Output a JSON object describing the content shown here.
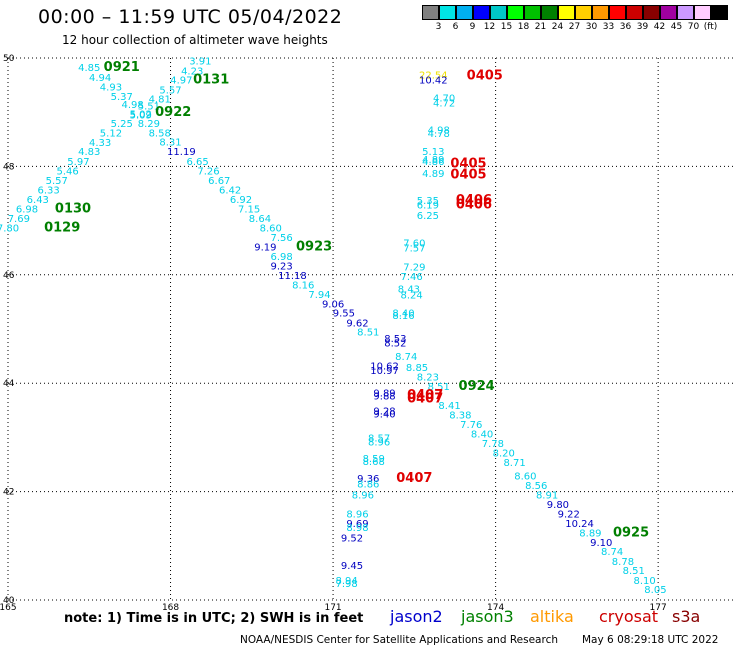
{
  "header": {
    "title": "00:00 – 11:59 UTC 05/04/2022",
    "subtitle": "12 hour collection of altimeter wave heights"
  },
  "legend": {
    "colors": [
      "#808080",
      "#00e5e5",
      "#00b0f0",
      "#0000ff",
      "#00c8c8",
      "#00ff00",
      "#00c000",
      "#008000",
      "#ffff00",
      "#ffd000",
      "#ff9900",
      "#ff0000",
      "#cc0000",
      "#880000",
      "#a000a0",
      "#cc99ff",
      "#ffccff",
      "#000000"
    ],
    "labels": [
      "3",
      "6",
      "9",
      "12",
      "15",
      "18",
      "21",
      "24",
      "27",
      "30",
      "33",
      "36",
      "39",
      "42",
      "45",
      "70",
      "(ft)"
    ]
  },
  "axes": {
    "x_ticks": [
      {
        "v": 165,
        "label": "165"
      },
      {
        "v": 168,
        "label": "168"
      },
      {
        "v": 171,
        "label": "171"
      },
      {
        "v": 174,
        "label": "174"
      },
      {
        "v": 177,
        "label": "177"
      }
    ],
    "y_ticks": [
      {
        "v": 40,
        "label": "40"
      },
      {
        "v": 42,
        "label": "42"
      },
      {
        "v": 44,
        "label": "44"
      },
      {
        "v": 46,
        "label": "46"
      },
      {
        "v": 48,
        "label": "48"
      },
      {
        "v": 50,
        "label": "50"
      }
    ]
  },
  "labels": [
    {
      "t": "3.91",
      "c": "#00d0e8",
      "lon": 168.55,
      "lat": 49.95
    },
    {
      "t": "4.85",
      "c": "#00d0e8",
      "lon": 166.5,
      "lat": 49.83
    },
    {
      "t": "0921",
      "c": "#007f00",
      "lon": 167.1,
      "lat": 49.83,
      "big": true
    },
    {
      "t": "4.23",
      "c": "#00d0e8",
      "lon": 168.4,
      "lat": 49.77
    },
    {
      "t": "4.94",
      "c": "#00d0e8",
      "lon": 166.7,
      "lat": 49.65
    },
    {
      "t": "4.97",
      "c": "#00d0e8",
      "lon": 168.2,
      "lat": 49.6
    },
    {
      "t": "0131",
      "c": "#007f00",
      "lon": 168.75,
      "lat": 49.6,
      "big": true
    },
    {
      "t": "4.93",
      "c": "#00d0e8",
      "lon": 166.9,
      "lat": 49.47
    },
    {
      "t": "5.57",
      "c": "#00d0e8",
      "lon": 168.0,
      "lat": 49.42
    },
    {
      "t": "5.37",
      "c": "#00d0e8",
      "lon": 167.1,
      "lat": 49.3
    },
    {
      "t": "4.81",
      "c": "#00d0e8",
      "lon": 167.8,
      "lat": 49.25
    },
    {
      "t": "4.98",
      "c": "#00d0e8",
      "lon": 167.3,
      "lat": 49.15
    },
    {
      "t": "5.51",
      "c": "#00d0e8",
      "lon": 167.6,
      "lat": 49.12
    },
    {
      "t": "5.02",
      "c": "#00d0e8",
      "lon": 167.45,
      "lat": 48.98
    },
    {
      "t": "5.09",
      "c": "#00d0e8",
      "lon": 167.45,
      "lat": 48.96
    },
    {
      "t": "0922",
      "c": "#007f00",
      "lon": 168.05,
      "lat": 49.0,
      "big": true
    },
    {
      "t": "5.25",
      "c": "#00d0e8",
      "lon": 167.1,
      "lat": 48.8
    },
    {
      "t": "8.29",
      "c": "#00d0e8",
      "lon": 167.6,
      "lat": 48.8
    },
    {
      "t": "5.12",
      "c": "#00d0e8",
      "lon": 166.9,
      "lat": 48.63
    },
    {
      "t": "8.58",
      "c": "#00d0e8",
      "lon": 167.8,
      "lat": 48.63
    },
    {
      "t": "4.33",
      "c": "#00d0e8",
      "lon": 166.7,
      "lat": 48.45
    },
    {
      "t": "8.31",
      "c": "#00d0e8",
      "lon": 168.0,
      "lat": 48.46
    },
    {
      "t": "4.83",
      "c": "#00d0e8",
      "lon": 166.5,
      "lat": 48.28
    },
    {
      "t": "11.19",
      "c": "#0000c0",
      "lon": 168.2,
      "lat": 48.28
    },
    {
      "t": "5.97",
      "c": "#00d0e8",
      "lon": 166.3,
      "lat": 48.1
    },
    {
      "t": "6.65",
      "c": "#00d0e8",
      "lon": 168.5,
      "lat": 48.1
    },
    {
      "t": "5.46",
      "c": "#00d0e8",
      "lon": 166.1,
      "lat": 47.92
    },
    {
      "t": "7.26",
      "c": "#00d0e8",
      "lon": 168.7,
      "lat": 47.92
    },
    {
      "t": "5.57",
      "c": "#00d0e8",
      "lon": 165.9,
      "lat": 47.75
    },
    {
      "t": "6.67",
      "c": "#00d0e8",
      "lon": 168.9,
      "lat": 47.75
    },
    {
      "t": "6.33",
      "c": "#00d0e8",
      "lon": 165.75,
      "lat": 47.57
    },
    {
      "t": "6.42",
      "c": "#00d0e8",
      "lon": 169.1,
      "lat": 47.57
    },
    {
      "t": "6.43",
      "c": "#00d0e8",
      "lon": 165.55,
      "lat": 47.4
    },
    {
      "t": "6.92",
      "c": "#00d0e8",
      "lon": 169.3,
      "lat": 47.4
    },
    {
      "t": "6.98",
      "c": "#00d0e8",
      "lon": 165.35,
      "lat": 47.22
    },
    {
      "t": "0130",
      "c": "#007f00",
      "lon": 166.2,
      "lat": 47.22,
      "big": true
    },
    {
      "t": "7.15",
      "c": "#00d0e8",
      "lon": 169.45,
      "lat": 47.22
    },
    {
      "t": "7.69",
      "c": "#00d0e8",
      "lon": 165.2,
      "lat": 47.05
    },
    {
      "t": "8.64",
      "c": "#00d0e8",
      "lon": 169.65,
      "lat": 47.05
    },
    {
      "t": "7.80",
      "c": "#00d0e8",
      "lon": 165.0,
      "lat": 46.87
    },
    {
      "t": "0129",
      "c": "#007f00",
      "lon": 166.0,
      "lat": 46.87,
      "big": true
    },
    {
      "t": "8.60",
      "c": "#00d0e8",
      "lon": 169.85,
      "lat": 46.87
    },
    {
      "t": "7.56",
      "c": "#00d0e8",
      "lon": 170.05,
      "lat": 46.7
    },
    {
      "t": "9.19",
      "c": "#0000c0",
      "lon": 169.75,
      "lat": 46.52
    },
    {
      "t": "0923",
      "c": "#007f00",
      "lon": 170.65,
      "lat": 46.52,
      "big": true
    },
    {
      "t": "6.98",
      "c": "#00d0e8",
      "lon": 170.05,
      "lat": 46.35
    },
    {
      "t": "9.23",
      "c": "#0000c0",
      "lon": 170.05,
      "lat": 46.17
    },
    {
      "t": "11.18",
      "c": "#0000c0",
      "lon": 170.25,
      "lat": 46.0
    },
    {
      "t": "8.16",
      "c": "#00d0e8",
      "lon": 170.45,
      "lat": 45.82
    },
    {
      "t": "7.94",
      "c": "#00d0e8",
      "lon": 170.75,
      "lat": 45.65
    },
    {
      "t": "9.06",
      "c": "#0000c0",
      "lon": 171.0,
      "lat": 45.47
    },
    {
      "t": "9.55",
      "c": "#0000c0",
      "lon": 171.2,
      "lat": 45.3
    },
    {
      "t": "9.62",
      "c": "#0000c0",
      "lon": 171.45,
      "lat": 45.12
    },
    {
      "t": "8.51",
      "c": "#00d0e8",
      "lon": 171.65,
      "lat": 44.95
    },
    {
      "t": "7.60",
      "c": "#00d0e8",
      "lon": 172.5,
      "lat": 46.6
    },
    {
      "t": "7.57",
      "c": "#00d0e8",
      "lon": 172.5,
      "lat": 46.5
    },
    {
      "t": "7.29",
      "c": "#00d0e8",
      "lon": 172.5,
      "lat": 46.15
    },
    {
      "t": "7.46",
      "c": "#00d0e8",
      "lon": 172.45,
      "lat": 45.98
    },
    {
      "t": "8.43",
      "c": "#00d0e8",
      "lon": 172.4,
      "lat": 45.75
    },
    {
      "t": "8.24",
      "c": "#00d0e8",
      "lon": 172.45,
      "lat": 45.64
    },
    {
      "t": "8.40",
      "c": "#00d0e8",
      "lon": 172.3,
      "lat": 45.3
    },
    {
      "t": "8.16",
      "c": "#00d0e8",
      "lon": 172.3,
      "lat": 45.26
    },
    {
      "t": "8.53",
      "c": "#0000c0",
      "lon": 172.15,
      "lat": 44.83
    },
    {
      "t": "8.52",
      "c": "#0000c0",
      "lon": 172.15,
      "lat": 44.75
    },
    {
      "t": "8.74",
      "c": "#00d0e8",
      "lon": 172.35,
      "lat": 44.5
    },
    {
      "t": "10.62",
      "c": "#0000c0",
      "lon": 171.95,
      "lat": 44.33
    },
    {
      "t": "10.97",
      "c": "#0000c0",
      "lon": 171.95,
      "lat": 44.24
    },
    {
      "t": "8.85",
      "c": "#00d0e8",
      "lon": 172.55,
      "lat": 44.3
    },
    {
      "t": "8.23",
      "c": "#00d0e8",
      "lon": 172.75,
      "lat": 44.12
    },
    {
      "t": "8.51",
      "c": "#00d0e8",
      "lon": 172.95,
      "lat": 43.95
    },
    {
      "t": "0924",
      "c": "#007f00",
      "lon": 173.65,
      "lat": 43.95,
      "big": true
    },
    {
      "t": "9.89",
      "c": "#0000c0",
      "lon": 171.95,
      "lat": 43.83
    },
    {
      "t": "9.88",
      "c": "#0000c0",
      "lon": 171.95,
      "lat": 43.77
    },
    {
      "t": "0407",
      "c": "#e00000",
      "lon": 172.7,
      "lat": 43.78,
      "big": true
    },
    {
      "t": "0407",
      "c": "#e00000",
      "lon": 172.7,
      "lat": 43.72,
      "big": true
    },
    {
      "t": "8.41",
      "c": "#00d0e8",
      "lon": 173.15,
      "lat": 43.6
    },
    {
      "t": "9.28",
      "c": "#0000c0",
      "lon": 171.95,
      "lat": 43.5
    },
    {
      "t": "9.40",
      "c": "#0000c0",
      "lon": 171.95,
      "lat": 43.44
    },
    {
      "t": "8.38",
      "c": "#00d0e8",
      "lon": 173.35,
      "lat": 43.42
    },
    {
      "t": "7.76",
      "c": "#00d0e8",
      "lon": 173.55,
      "lat": 43.25
    },
    {
      "t": "8.57",
      "c": "#00d0e8",
      "lon": 171.85,
      "lat": 43.0
    },
    {
      "t": "8.96",
      "c": "#00d0e8",
      "lon": 171.85,
      "lat": 42.92
    },
    {
      "t": "8.40",
      "c": "#00d0e8",
      "lon": 173.75,
      "lat": 43.07
    },
    {
      "t": "7.78",
      "c": "#00d0e8",
      "lon": 173.95,
      "lat": 42.9
    },
    {
      "t": "8.20",
      "c": "#00d0e8",
      "lon": 174.15,
      "lat": 42.72
    },
    {
      "t": "8.59",
      "c": "#00d0e8",
      "lon": 171.75,
      "lat": 42.62
    },
    {
      "t": "8.68",
      "c": "#00d0e8",
      "lon": 171.75,
      "lat": 42.56
    },
    {
      "t": "8.71",
      "c": "#00d0e8",
      "lon": 174.35,
      "lat": 42.55
    },
    {
      "t": "9.36",
      "c": "#0000c0",
      "lon": 171.65,
      "lat": 42.25
    },
    {
      "t": "8.86",
      "c": "#00d0e8",
      "lon": 171.65,
      "lat": 42.15
    },
    {
      "t": "0407",
      "c": "#e00000",
      "lon": 172.5,
      "lat": 42.25,
      "big": true
    },
    {
      "t": "8.60",
      "c": "#00d0e8",
      "lon": 174.55,
      "lat": 42.3
    },
    {
      "t": "8.56",
      "c": "#00d0e8",
      "lon": 174.75,
      "lat": 42.12
    },
    {
      "t": "8.96",
      "c": "#00d0e8",
      "lon": 171.55,
      "lat": 41.95
    },
    {
      "t": "8.91",
      "c": "#00d0e8",
      "lon": 174.95,
      "lat": 41.95
    },
    {
      "t": "9.80",
      "c": "#0000c0",
      "lon": 175.15,
      "lat": 41.77
    },
    {
      "t": "8.96",
      "c": "#00d0e8",
      "lon": 171.45,
      "lat": 41.6
    },
    {
      "t": "9.22",
      "c": "#0000c0",
      "lon": 175.35,
      "lat": 41.6
    },
    {
      "t": "9.69",
      "c": "#0000c0",
      "lon": 171.45,
      "lat": 41.42
    },
    {
      "t": "8.98",
      "c": "#00d0e8",
      "lon": 171.45,
      "lat": 41.35
    },
    {
      "t": "10.24",
      "c": "#0000c0",
      "lon": 175.55,
      "lat": 41.42
    },
    {
      "t": "8.89",
      "c": "#00d0e8",
      "lon": 175.75,
      "lat": 41.25
    },
    {
      "t": "0925",
      "c": "#007f00",
      "lon": 176.5,
      "lat": 41.25,
      "big": true
    },
    {
      "t": "9.52",
      "c": "#0000c0",
      "lon": 171.35,
      "lat": 41.15
    },
    {
      "t": "9.10",
      "c": "#0000c0",
      "lon": 175.95,
      "lat": 41.07
    },
    {
      "t": "8.74",
      "c": "#00d0e8",
      "lon": 176.15,
      "lat": 40.9
    },
    {
      "t": "9.45",
      "c": "#0000c0",
      "lon": 171.35,
      "lat": 40.65
    },
    {
      "t": "8.78",
      "c": "#00d0e8",
      "lon": 176.35,
      "lat": 40.72
    },
    {
      "t": "8.51",
      "c": "#00d0e8",
      "lon": 176.55,
      "lat": 40.55
    },
    {
      "t": "8.94",
      "c": "#00d0e8",
      "lon": 171.25,
      "lat": 40.37
    },
    {
      "t": "7.98",
      "c": "#00d0e8",
      "lon": 171.25,
      "lat": 40.31
    },
    {
      "t": "8.10",
      "c": "#00d0e8",
      "lon": 176.75,
      "lat": 40.37
    },
    {
      "t": "8.05",
      "c": "#00d0e8",
      "lon": 176.95,
      "lat": 40.2
    },
    {
      "t": "22.54",
      "c": "#f0e000",
      "lon": 172.85,
      "lat": 49.7
    },
    {
      "t": "10.42",
      "c": "#0000c0",
      "lon": 172.85,
      "lat": 49.6
    },
    {
      "t": "0405",
      "c": "#e00000",
      "lon": 173.8,
      "lat": 49.68,
      "big": true
    },
    {
      "t": "4.70",
      "c": "#00d0e8",
      "lon": 173.05,
      "lat": 49.27
    },
    {
      "t": "4.72",
      "c": "#00d0e8",
      "lon": 173.05,
      "lat": 49.18
    },
    {
      "t": "4.98",
      "c": "#00d0e8",
      "lon": 172.95,
      "lat": 48.68
    },
    {
      "t": "4.78",
      "c": "#00d0e8",
      "lon": 172.95,
      "lat": 48.62
    },
    {
      "t": "5.13",
      "c": "#00d0e8",
      "lon": 172.85,
      "lat": 48.28
    },
    {
      "t": "4.89",
      "c": "#00d0e8",
      "lon": 172.85,
      "lat": 48.14
    },
    {
      "t": "4.86",
      "c": "#00d0e8",
      "lon": 172.85,
      "lat": 48.1
    },
    {
      "t": "0405",
      "c": "#e00000",
      "lon": 173.5,
      "lat": 48.05,
      "big": true
    },
    {
      "t": "4.89",
      "c": "#00d0e8",
      "lon": 172.85,
      "lat": 47.88
    },
    {
      "t": "0405",
      "c": "#e00000",
      "lon": 173.5,
      "lat": 47.85,
      "big": true
    },
    {
      "t": "5.35",
      "c": "#00d0e8",
      "lon": 172.75,
      "lat": 47.38
    },
    {
      "t": "6.19",
      "c": "#00d0e8",
      "lon": 172.75,
      "lat": 47.3
    },
    {
      "t": "0406",
      "c": "#e00000",
      "lon": 173.6,
      "lat": 47.38,
      "big": true
    },
    {
      "t": "0406",
      "c": "#e00000",
      "lon": 173.6,
      "lat": 47.3,
      "big": true
    },
    {
      "t": "6.25",
      "c": "#00d0e8",
      "lon": 172.75,
      "lat": 47.1
    }
  ],
  "footer": {
    "note": "note: 1) Time is in UTC; 2) SWH is in feet",
    "satellites": [
      {
        "name": "jason2",
        "color": "#0000cc"
      },
      {
        "name": "jason3",
        "color": "#008000"
      },
      {
        "name": "altika",
        "color": "#ff9900"
      },
      {
        "name": "cryosat",
        "color": "#cc0000"
      },
      {
        "name": "s3a",
        "color": "#880000"
      }
    ],
    "credit": "NOAA/NESDIS Center for Satellite Applications and Research",
    "timestamp": "May  6 08:29:18 UTC 2022"
  }
}
